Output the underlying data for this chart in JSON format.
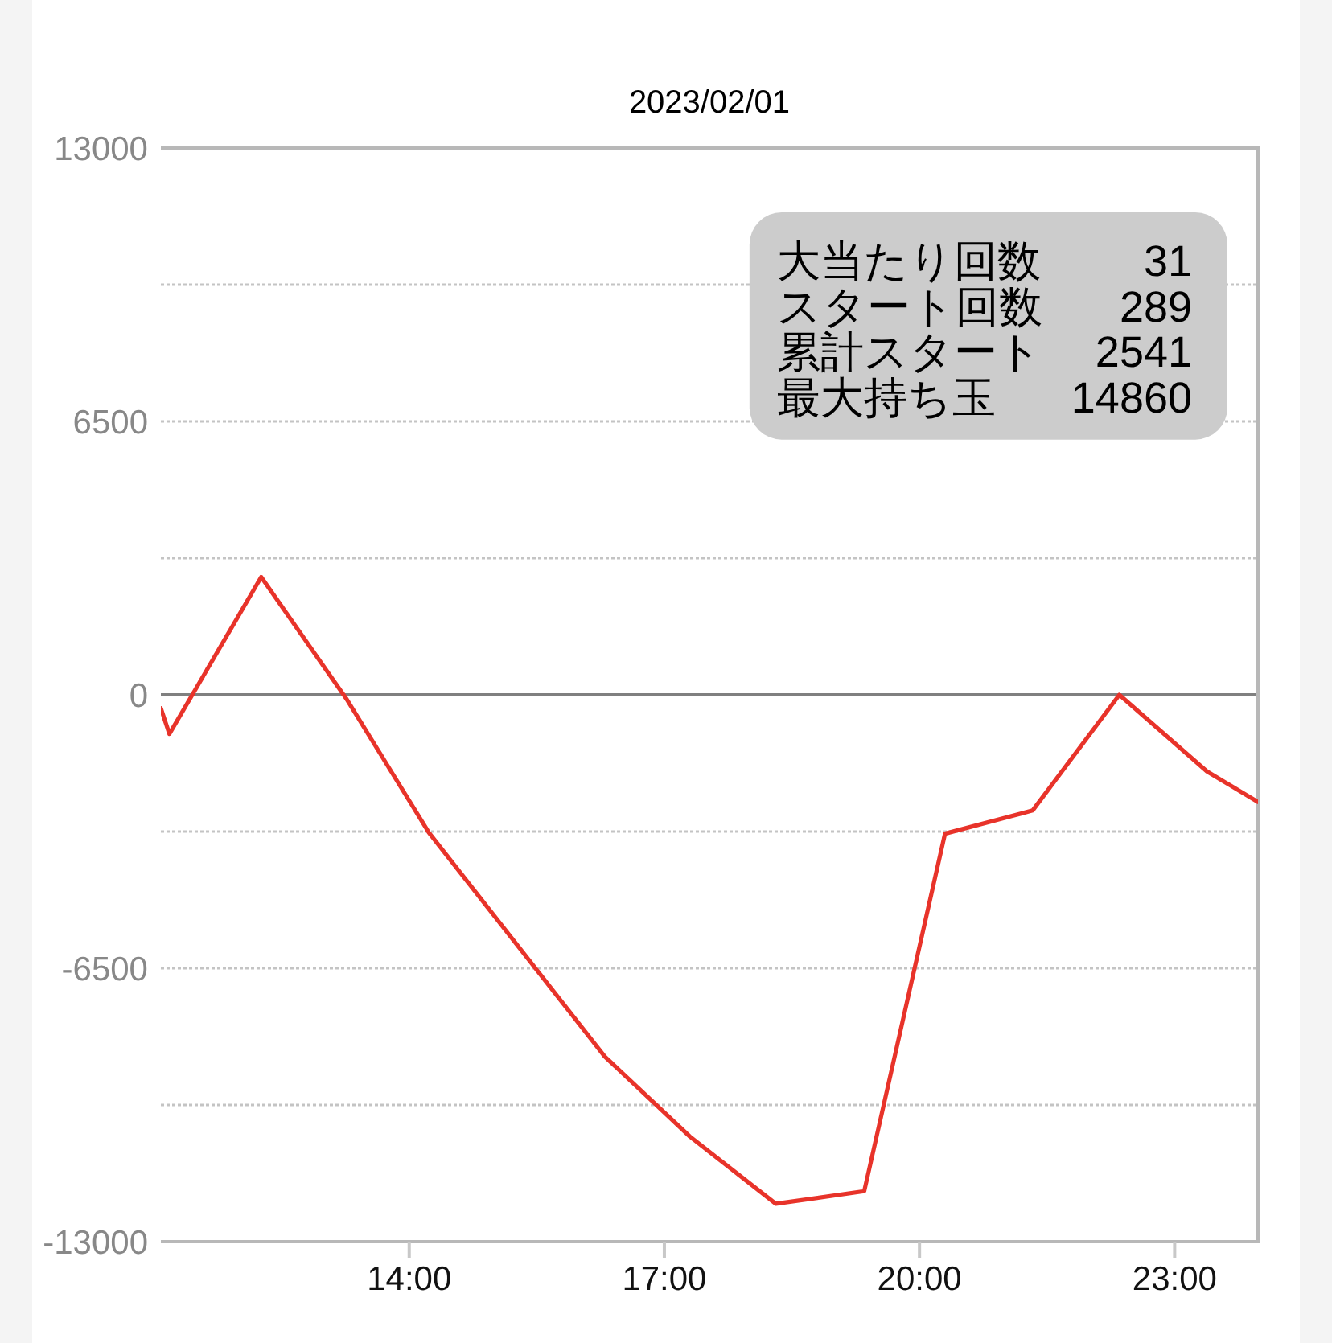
{
  "chart_data": {
    "type": "line",
    "title": "2023/02/01",
    "x": [
      11.08,
      11.18,
      12.26,
      13.26,
      14.23,
      16.3,
      17.3,
      18.31,
      19.35,
      20.3,
      21.33,
      22.35,
      23.38,
      23.98
    ],
    "series": [
      {
        "color": "#e8332a",
        "values": [
          -320,
          -930,
          2800,
          -90,
          -3270,
          -8600,
          -10500,
          -12100,
          -11800,
          -3300,
          -2750,
          0,
          -1820,
          -2550
        ]
      }
    ],
    "xlim": [
      11.08,
      23.98
    ],
    "xticks": [
      {
        "value": 14,
        "label": "14:00"
      },
      {
        "value": 17,
        "label": "17:00"
      },
      {
        "value": 20,
        "label": "20:00"
      },
      {
        "value": 23,
        "label": "23:00"
      }
    ],
    "ylim": [
      -13000,
      13000
    ],
    "yticks": [
      13000,
      {
        "value": 9750,
        "label": null
      },
      6500,
      {
        "value": 3250,
        "label": null
      },
      0,
      {
        "value": -3250,
        "label": null
      },
      -6500,
      {
        "value": -9750,
        "label": null
      },
      -13000
    ],
    "grid": "y",
    "line_style": "solid",
    "ref_lines": [
      {
        "axis": "y",
        "value": 0,
        "color": "#808080"
      }
    ],
    "annotations": [
      "大当たり回数",
      "31",
      "スタート回数",
      "289",
      "累計スタート",
      "2541",
      "最大持ち玉",
      "14860"
    ]
  }
}
